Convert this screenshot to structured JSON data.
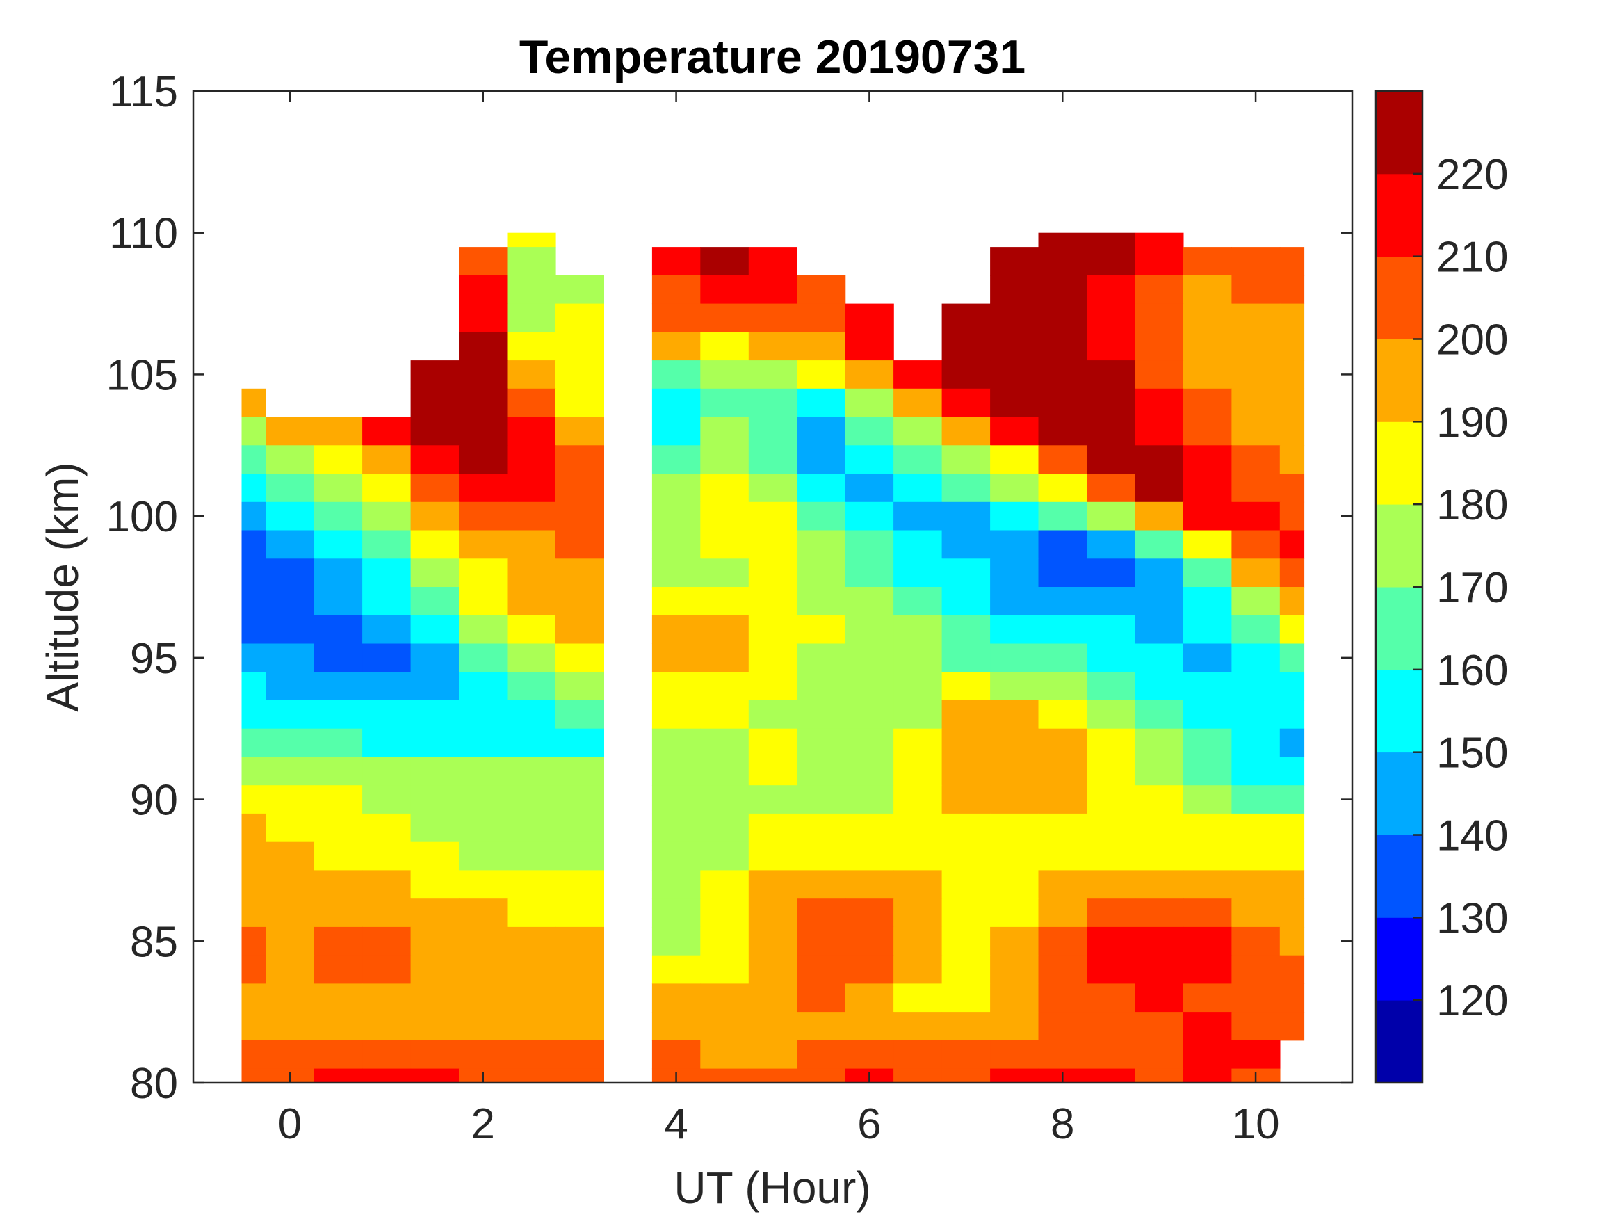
{
  "chart_data": {
    "type": "heatmap",
    "subtype": "filled-contour",
    "title": "Temperature 20190731",
    "xlabel": "UT (Hour)",
    "ylabel": "Altitude (km)",
    "xlim": [
      -1,
      11
    ],
    "ylim": [
      80,
      115
    ],
    "xticks": [
      0,
      2,
      4,
      6,
      8,
      10
    ],
    "xtick_labels": [
      "0",
      "2",
      "4",
      "6",
      "8",
      "10"
    ],
    "yticks": [
      80,
      85,
      90,
      95,
      100,
      105,
      110,
      115
    ],
    "ytick_labels": [
      "80",
      "85",
      "90",
      "95",
      "100",
      "105",
      "110",
      "115"
    ],
    "colorbar": {
      "clim": [
        110,
        230
      ],
      "levels": [
        110,
        120,
        130,
        140,
        150,
        160,
        170,
        180,
        190,
        200,
        210,
        220,
        230
      ],
      "ticks": [
        120,
        130,
        140,
        150,
        160,
        170,
        180,
        190,
        200,
        210,
        220
      ],
      "tick_labels": [
        "120",
        "130",
        "140",
        "150",
        "160",
        "170",
        "180",
        "190",
        "200",
        "210",
        "220"
      ],
      "colors": [
        "#0000AA",
        "#0000FF",
        "#0055FF",
        "#00AAFF",
        "#00FFFF",
        "#55FFAA",
        "#AAFF55",
        "#FFFF00",
        "#FFAA00",
        "#FF5500",
        "#FF0000",
        "#AA0000"
      ],
      "location": "right"
    },
    "grid": false,
    "x": [
      -0.5,
      0,
      0.5,
      1,
      1.5,
      2,
      2.5,
      3,
      3.5,
      4,
      4.5,
      5,
      5.5,
      6,
      6.5,
      7,
      7.5,
      8,
      8.5,
      9,
      9.5,
      10,
      10.5
    ],
    "y": [
      110,
      109,
      108,
      107,
      106,
      105,
      104,
      103,
      102,
      101,
      100,
      99,
      98,
      97,
      96,
      95,
      94,
      93,
      92,
      91,
      90,
      89,
      88,
      87,
      86,
      85,
      84,
      83,
      82,
      81,
      80
    ],
    "z_units": "K",
    "z": [
      [
        null,
        null,
        null,
        null,
        null,
        null,
        185,
        null,
        null,
        null,
        null,
        null,
        null,
        null,
        null,
        null,
        null,
        225,
        225,
        215,
        null,
        null,
        null
      ],
      [
        null,
        null,
        null,
        null,
        null,
        205,
        175,
        null,
        null,
        215,
        225,
        215,
        null,
        null,
        null,
        null,
        225,
        225,
        220,
        210,
        205,
        200,
        200
      ],
      [
        null,
        null,
        null,
        null,
        null,
        215,
        175,
        175,
        null,
        205,
        215,
        210,
        205,
        null,
        null,
        null,
        225,
        225,
        215,
        205,
        195,
        200,
        200
      ],
      [
        null,
        null,
        null,
        null,
        null,
        215,
        175,
        185,
        null,
        200,
        200,
        200,
        205,
        215,
        null,
        225,
        225,
        225,
        215,
        200,
        195,
        195,
        190
      ],
      [
        null,
        null,
        null,
        null,
        null,
        220,
        185,
        185,
        null,
        195,
        185,
        195,
        195,
        210,
        null,
        225,
        225,
        225,
        215,
        200,
        195,
        195,
        190
      ],
      [
        null,
        null,
        null,
        null,
        225,
        225,
        195,
        185,
        null,
        165,
        175,
        175,
        185,
        195,
        215,
        225,
        225,
        225,
        220,
        205,
        195,
        195,
        195
      ],
      [
        195,
        null,
        null,
        null,
        225,
        225,
        205,
        185,
        null,
        155,
        165,
        165,
        155,
        175,
        195,
        215,
        225,
        225,
        225,
        215,
        200,
        195,
        195
      ],
      [
        175,
        190,
        195,
        215,
        225,
        225,
        215,
        190,
        null,
        155,
        175,
        165,
        145,
        165,
        175,
        195,
        215,
        225,
        225,
        215,
        205,
        195,
        190
      ],
      [
        165,
        175,
        185,
        195,
        215,
        225,
        215,
        205,
        null,
        165,
        175,
        165,
        145,
        155,
        165,
        175,
        185,
        205,
        225,
        225,
        210,
        205,
        195
      ],
      [
        155,
        165,
        175,
        185,
        205,
        215,
        215,
        205,
        null,
        175,
        185,
        175,
        155,
        145,
        155,
        165,
        175,
        185,
        205,
        225,
        215,
        205,
        205
      ],
      [
        145,
        155,
        165,
        175,
        195,
        205,
        205,
        205,
        null,
        175,
        185,
        185,
        165,
        155,
        145,
        145,
        155,
        165,
        175,
        195,
        215,
        210,
        205
      ],
      [
        135,
        145,
        155,
        165,
        185,
        195,
        195,
        205,
        null,
        175,
        185,
        185,
        175,
        165,
        155,
        145,
        145,
        135,
        145,
        165,
        185,
        205,
        210
      ],
      [
        135,
        135,
        145,
        155,
        175,
        185,
        195,
        195,
        null,
        175,
        175,
        185,
        175,
        165,
        155,
        155,
        145,
        135,
        135,
        145,
        165,
        195,
        205
      ],
      [
        135,
        135,
        145,
        155,
        165,
        185,
        195,
        195,
        null,
        185,
        185,
        185,
        175,
        175,
        165,
        155,
        145,
        145,
        145,
        145,
        155,
        175,
        195
      ],
      [
        135,
        135,
        135,
        145,
        155,
        175,
        185,
        195,
        null,
        195,
        195,
        185,
        185,
        175,
        175,
        165,
        155,
        155,
        155,
        145,
        155,
        165,
        185
      ],
      [
        145,
        145,
        135,
        135,
        145,
        165,
        175,
        185,
        null,
        195,
        195,
        185,
        175,
        175,
        175,
        165,
        165,
        165,
        155,
        155,
        145,
        155,
        165
      ],
      [
        155,
        145,
        145,
        145,
        145,
        155,
        165,
        175,
        null,
        185,
        185,
        185,
        175,
        175,
        175,
        185,
        175,
        175,
        165,
        155,
        155,
        155,
        155
      ],
      [
        155,
        155,
        155,
        155,
        155,
        155,
        155,
        165,
        null,
        185,
        185,
        175,
        175,
        175,
        175,
        195,
        195,
        185,
        175,
        165,
        155,
        155,
        155
      ],
      [
        165,
        165,
        165,
        155,
        155,
        155,
        155,
        155,
        null,
        175,
        175,
        185,
        175,
        175,
        185,
        195,
        195,
        195,
        185,
        175,
        165,
        155,
        145
      ],
      [
        175,
        175,
        175,
        175,
        175,
        175,
        175,
        175,
        null,
        175,
        175,
        185,
        175,
        175,
        185,
        195,
        195,
        195,
        185,
        175,
        165,
        155,
        155
      ],
      [
        185,
        185,
        185,
        175,
        175,
        175,
        175,
        175,
        null,
        175,
        175,
        175,
        175,
        175,
        185,
        195,
        195,
        195,
        185,
        185,
        175,
        165,
        165
      ],
      [
        195,
        185,
        185,
        185,
        175,
        175,
        175,
        175,
        null,
        175,
        175,
        185,
        185,
        185,
        185,
        185,
        185,
        185,
        185,
        185,
        185,
        185,
        185
      ],
      [
        195,
        195,
        185,
        185,
        185,
        175,
        175,
        175,
        null,
        175,
        175,
        185,
        185,
        185,
        185,
        185,
        185,
        185,
        185,
        185,
        185,
        185,
        185
      ],
      [
        195,
        195,
        195,
        195,
        185,
        185,
        185,
        185,
        null,
        175,
        185,
        195,
        195,
        195,
        195,
        185,
        185,
        195,
        195,
        195,
        195,
        195,
        195
      ],
      [
        195,
        195,
        195,
        195,
        195,
        195,
        185,
        185,
        null,
        175,
        185,
        195,
        205,
        205,
        195,
        185,
        185,
        195,
        205,
        205,
        205,
        195,
        195
      ],
      [
        205,
        195,
        205,
        205,
        195,
        195,
        195,
        195,
        null,
        175,
        185,
        195,
        205,
        205,
        195,
        185,
        195,
        205,
        215,
        215,
        215,
        205,
        195
      ],
      [
        205,
        195,
        205,
        205,
        195,
        195,
        195,
        195,
        null,
        185,
        185,
        195,
        205,
        205,
        195,
        185,
        195,
        205,
        215,
        215,
        215,
        205,
        205
      ],
      [
        195,
        195,
        195,
        195,
        195,
        195,
        195,
        195,
        null,
        195,
        195,
        195,
        205,
        195,
        185,
        185,
        195,
        205,
        205,
        215,
        205,
        205,
        205
      ],
      [
        195,
        195,
        195,
        195,
        195,
        195,
        195,
        195,
        null,
        195,
        195,
        195,
        195,
        195,
        195,
        195,
        195,
        205,
        205,
        205,
        215,
        205,
        205
      ],
      [
        205,
        205,
        205,
        205,
        205,
        205,
        205,
        205,
        null,
        205,
        195,
        195,
        205,
        205,
        205,
        205,
        205,
        205,
        205,
        205,
        215,
        215,
        null
      ],
      [
        205,
        205,
        215,
        215,
        215,
        205,
        205,
        205,
        null,
        205,
        205,
        205,
        205,
        215,
        205,
        205,
        215,
        215,
        215,
        205,
        215,
        205,
        null
      ]
    ]
  }
}
